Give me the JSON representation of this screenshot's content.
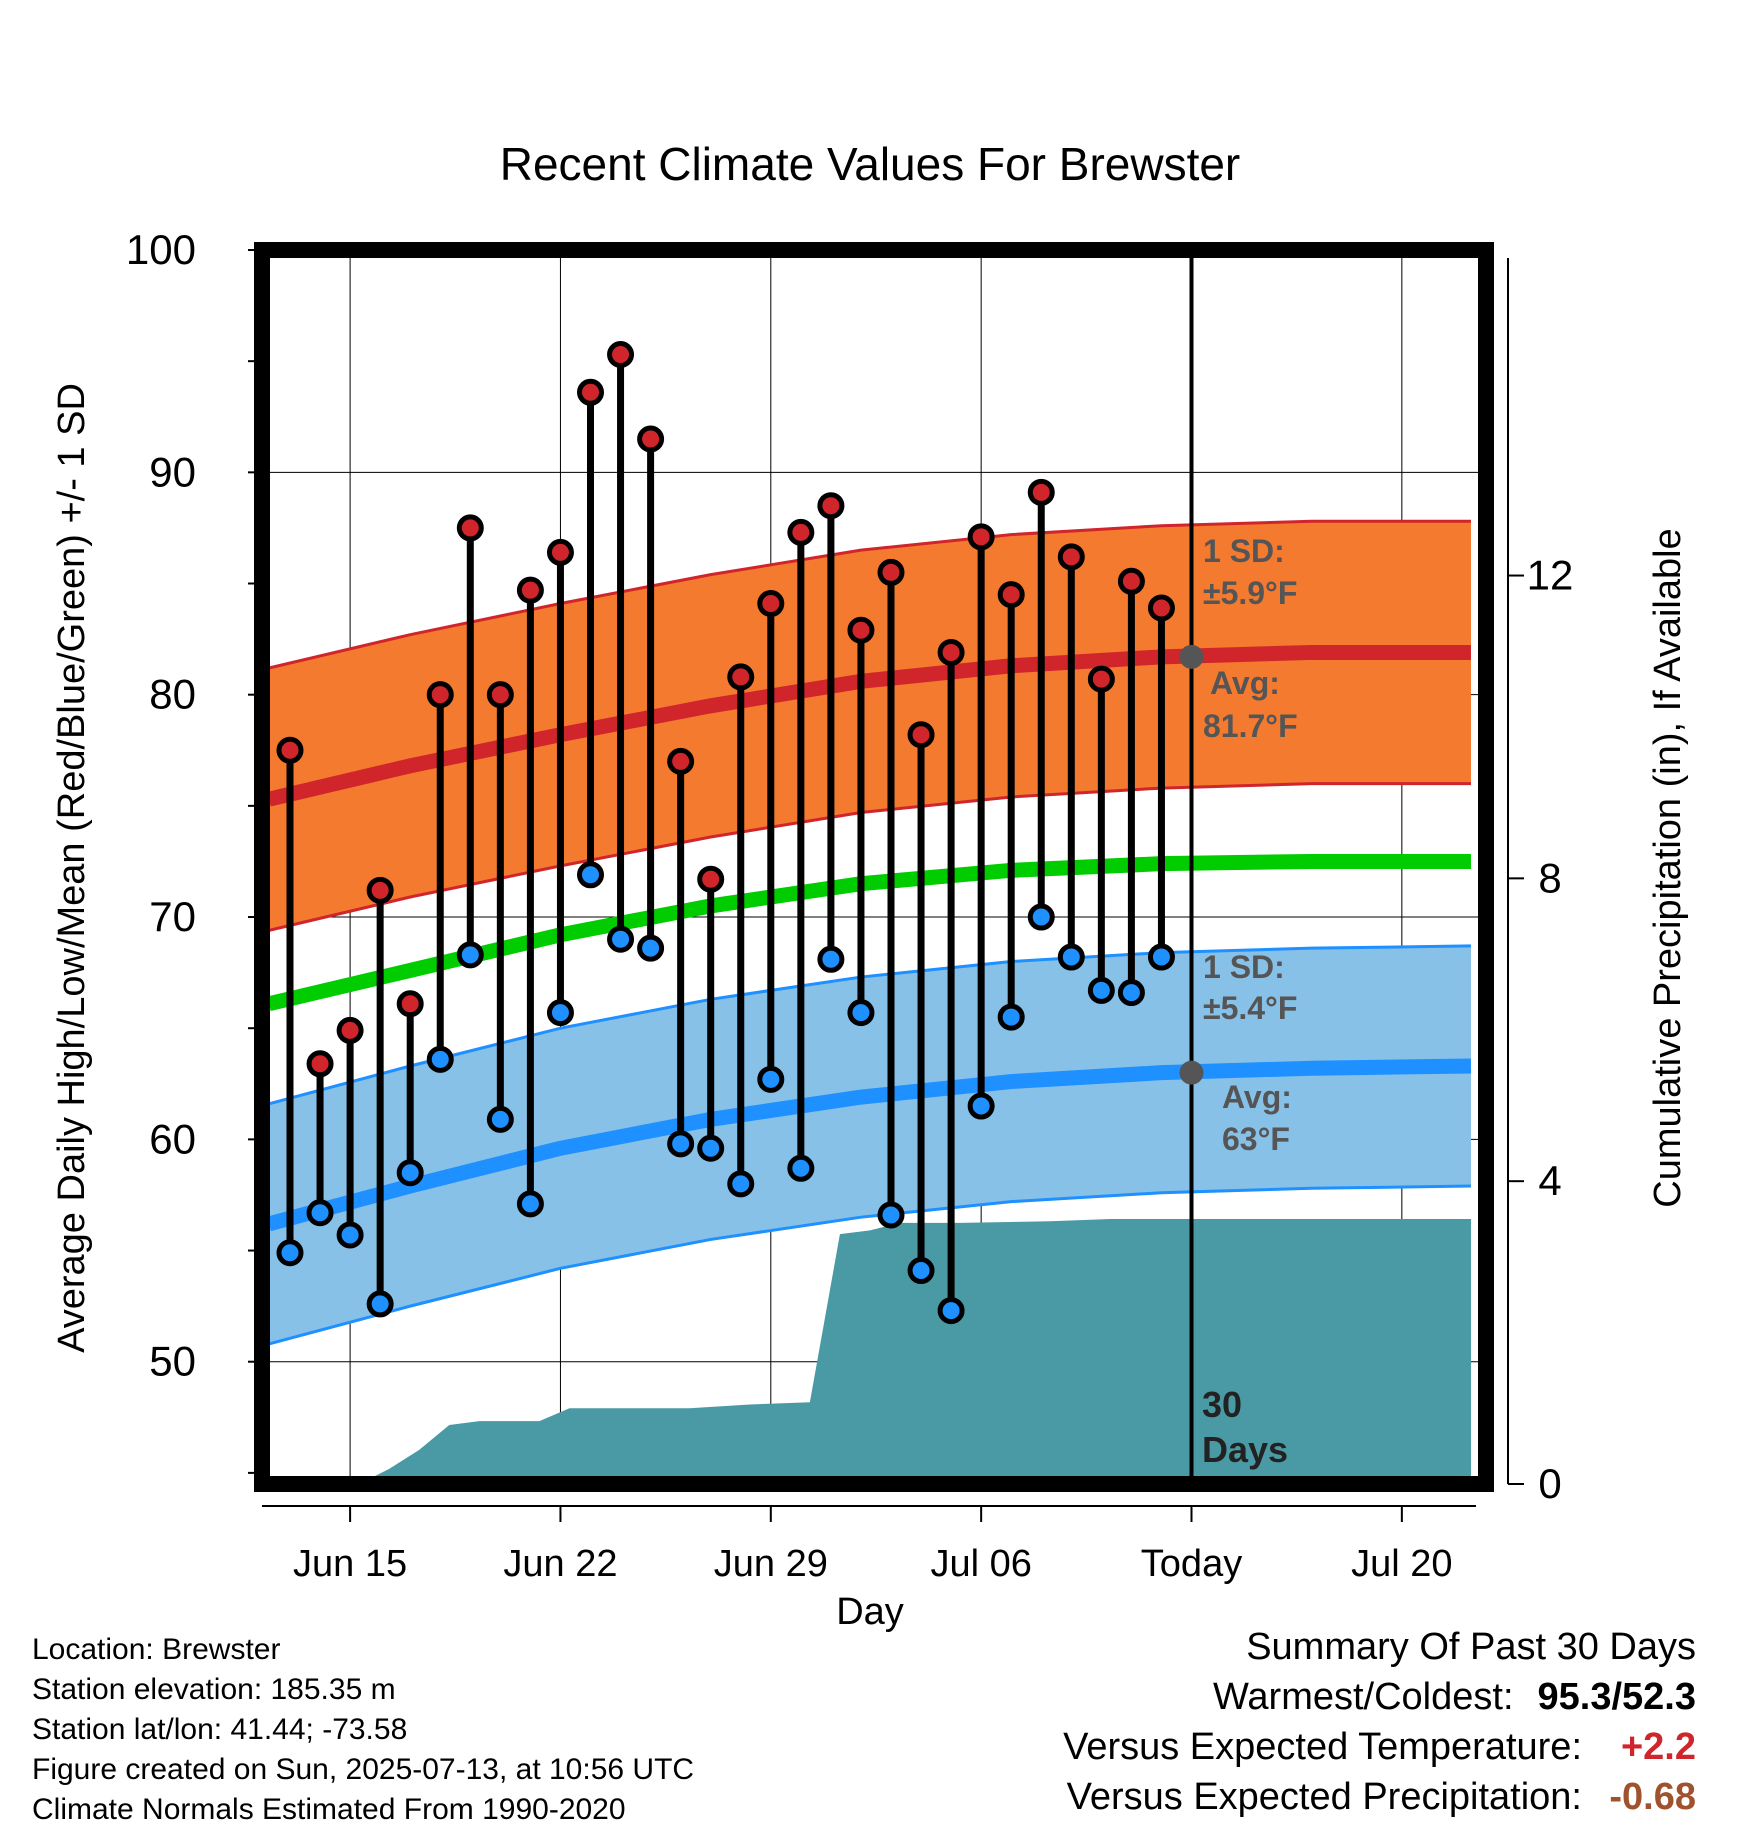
{
  "chart_data": {
    "type": "line",
    "title": "Recent Climate Values For Brewster",
    "xlabel": "Day",
    "ylabel": "Average Daily High/Low/Mean (Red/Blue/Green) +/- 1 SD",
    "y2label": "Cumulative Precipitation (in), If Available",
    "ylim": [
      44.5,
      100
    ],
    "y2lim": [
      0,
      16.3
    ],
    "x_ticks": [
      "Jun 15",
      "Jun 22",
      "Jun 29",
      "Jul 06",
      "Today",
      "Jul 20"
    ],
    "y_ticks": [
      50,
      60,
      70,
      80,
      90,
      100
    ],
    "y2_ticks": [
      0,
      4,
      8,
      12
    ],
    "grid": true,
    "colors": {
      "high": "#d0252b",
      "high_band": "#f47a30",
      "low": "#1e90ff",
      "low_band": "#87c1e8",
      "mean": "#00cc00",
      "precip": "#4a9aa5"
    },
    "days": [
      "Jun 13",
      "Jun 14",
      "Jun 15",
      "Jun 16",
      "Jun 17",
      "Jun 18",
      "Jun 19",
      "Jun 20",
      "Jun 21",
      "Jun 22",
      "Jun 23",
      "Jun 24",
      "Jun 25",
      "Jun 26",
      "Jun 27",
      "Jun 28",
      "Jun 29",
      "Jun 30",
      "Jul 01",
      "Jul 02",
      "Jul 03",
      "Jul 04",
      "Jul 05",
      "Jul 06",
      "Jul 07",
      "Jul 08",
      "Jul 09",
      "Jul 10",
      "Jul 11",
      "Jul 12"
    ],
    "series": [
      {
        "name": "High",
        "values": [
          77.5,
          63.4,
          64.9,
          71.2,
          66.1,
          80.0,
          87.5,
          80.0,
          84.7,
          86.4,
          93.6,
          95.3,
          91.5,
          77.0,
          71.7,
          80.8,
          84.1,
          87.3,
          88.5,
          82.9,
          85.5,
          78.2,
          81.9,
          87.1,
          84.5,
          89.1,
          86.2,
          80.7,
          85.1,
          83.9
        ]
      },
      {
        "name": "Low",
        "values": [
          54.9,
          56.7,
          55.7,
          52.6,
          58.5,
          63.6,
          68.3,
          60.9,
          57.1,
          65.7,
          71.9,
          69.0,
          68.6,
          59.8,
          59.6,
          58.0,
          62.7,
          58.7,
          68.1,
          65.7,
          56.6,
          54.1,
          52.3,
          61.5,
          65.5,
          70.0,
          68.2,
          66.7,
          66.6,
          68.2
        ]
      },
      {
        "name": "Normal High",
        "x": [
          -0.7,
          4,
          9,
          14,
          19,
          24,
          29,
          34,
          39.3
        ],
        "values": [
          75.3,
          76.8,
          78.2,
          79.5,
          80.6,
          81.3,
          81.7,
          81.9,
          81.9
        ],
        "sd": 5.9
      },
      {
        "name": "Normal Mean",
        "x": [
          -0.7,
          4,
          9,
          14,
          19,
          24,
          29,
          34,
          39.3
        ],
        "values": [
          66.1,
          67.6,
          69.2,
          70.5,
          71.5,
          72.1,
          72.4,
          72.5,
          72.5
        ]
      },
      {
        "name": "Normal Low",
        "x": [
          -0.7,
          4,
          9,
          14,
          19,
          24,
          29,
          34,
          39.3
        ],
        "values": [
          56.2,
          57.9,
          59.6,
          60.9,
          61.9,
          62.6,
          63.0,
          63.2,
          63.3
        ],
        "sd": 5.4
      },
      {
        "name": "Cumulative Precipitation",
        "x": [
          -0.7,
          2.3,
          3.3,
          4.3,
          5.3,
          6.3,
          8.3,
          9.3,
          11.3,
          13.3,
          15.3,
          17.3,
          18.3,
          19.3,
          20.3,
          21.3,
          22.3,
          25.3,
          27.3,
          39.3
        ],
        "values": [
          0,
          0,
          0.2,
          0.45,
          0.78,
          0.83,
          0.83,
          1.0,
          1.0,
          1.0,
          1.05,
          1.08,
          3.3,
          3.35,
          3.45,
          3.45,
          3.45,
          3.47,
          3.5,
          3.5
        ]
      }
    ],
    "annotations": {
      "high_sd_title": "1 SD:",
      "high_sd_value": "±5.9°F",
      "high_avg_title": "Avg:",
      "high_avg_value": "81.7°F",
      "low_sd_title": "1 SD:",
      "low_sd_value": "±5.4°F",
      "low_avg_title": "Avg:",
      "low_avg_value": "63°F",
      "days_count": "30",
      "days_label": "Days"
    }
  },
  "info": {
    "location": "Location: Brewster",
    "elevation": "Station elevation: 185.35 m",
    "latlon": "Station lat/lon: 41.44; -73.58",
    "created": "Figure created on Sun, 2025-07-13, at 10:56 UTC",
    "normals": "Climate Normals Estimated From 1990-2020"
  },
  "summary": {
    "title": "Summary Of Past 30 Days",
    "warm_cold_label": "Warmest/Coldest:",
    "warm_cold_value": "95.3/52.3",
    "temp_label": "Versus Expected Temperature:",
    "temp_value": "+2.2",
    "precip_label": "Versus Expected Precipitation:",
    "precip_value": "-0.68"
  }
}
